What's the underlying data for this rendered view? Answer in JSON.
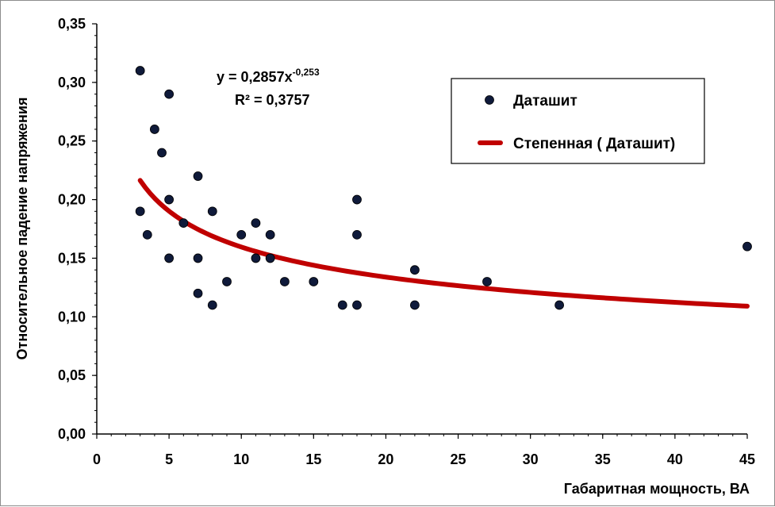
{
  "chart_data": {
    "type": "scatter",
    "title": "",
    "xlabel": "Габаритная мощность, ВА",
    "ylabel": "Относительное падение напряжения",
    "xlim": [
      0,
      45
    ],
    "ylim": [
      0,
      0.35
    ],
    "x_ticks": [
      0,
      5,
      10,
      15,
      20,
      25,
      30,
      35,
      40,
      45
    ],
    "x_tick_labels": [
      "0",
      "5",
      "10",
      "15",
      "20",
      "25",
      "30",
      "35",
      "40",
      "45"
    ],
    "y_ticks": [
      0,
      0.05,
      0.1,
      0.15,
      0.2,
      0.25,
      0.3,
      0.35
    ],
    "y_tick_labels": [
      "0,00",
      "0,05",
      "0,10",
      "0,15",
      "0,20",
      "0,25",
      "0,30",
      "0,35"
    ],
    "grid": false,
    "series": [
      {
        "name": "Даташит",
        "kind": "points",
        "color": "#0f1a3a",
        "x": [
          3,
          3,
          3.5,
          4,
          4.5,
          5,
          5,
          5,
          6,
          7,
          7,
          7,
          8,
          8,
          9,
          10,
          11,
          11,
          12,
          12,
          13,
          15,
          17,
          18,
          18,
          18,
          22,
          22,
          27,
          32,
          45
        ],
        "y": [
          0.31,
          0.19,
          0.17,
          0.26,
          0.24,
          0.29,
          0.2,
          0.15,
          0.18,
          0.22,
          0.15,
          0.12,
          0.19,
          0.11,
          0.13,
          0.17,
          0.18,
          0.15,
          0.17,
          0.15,
          0.13,
          0.13,
          0.11,
          0.2,
          0.17,
          0.11,
          0.14,
          0.11,
          0.13,
          0.11,
          0.16
        ]
      },
      {
        "name": "Степенная ( Даташит)",
        "kind": "power-trendline",
        "color": "#c00000",
        "coefficient": 0.2857,
        "exponent": -0.253,
        "x_range": [
          3,
          45
        ]
      }
    ],
    "annotation": {
      "equation_prefix": "y = 0,2857x",
      "equation_exponent": "-0,253",
      "r_squared": "R² = 0,3757"
    },
    "legend": {
      "placement": "top-right",
      "entries": [
        "Даташит",
        "Степенная ( Даташит)"
      ]
    }
  }
}
